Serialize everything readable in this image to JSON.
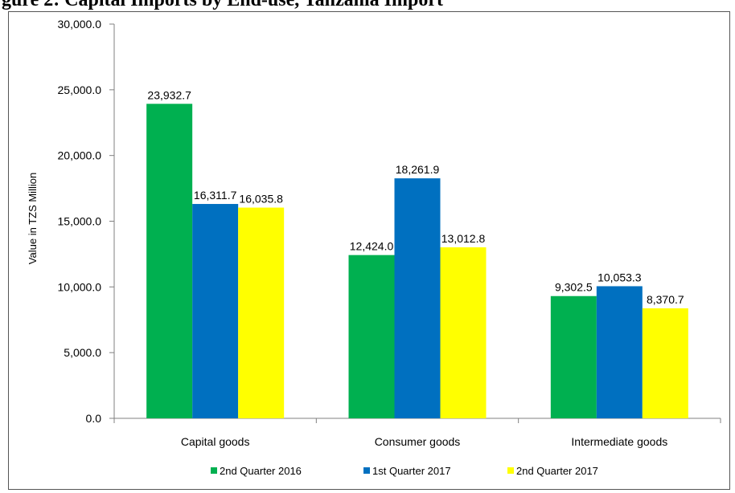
{
  "figure_title": "gure 2: Capital Imports by End-use, Tanzania Import",
  "chart_data": {
    "type": "bar",
    "categories": [
      "Capital goods",
      "Consumer  goods",
      "Intermediate goods"
    ],
    "series": [
      {
        "name": "2nd Quarter 2016",
        "color": "#00B050",
        "values": [
          23932.7,
          12424.0,
          9302.5
        ],
        "labels": [
          "23,932.7",
          "12,424.0",
          "9,302.5"
        ]
      },
      {
        "name": "1st Quarter 2017",
        "color": "#0070C0",
        "values": [
          16311.7,
          18261.9,
          10053.3
        ],
        "labels": [
          "16,311.7",
          "18,261.9",
          "10,053.3"
        ]
      },
      {
        "name": "2nd Quarter 2017",
        "color": "#FFFF00",
        "values": [
          16035.8,
          13012.8,
          8370.7
        ],
        "labels": [
          "16,035.8",
          "13,012.8",
          "8,370.7"
        ]
      }
    ],
    "ylabel": "Value in TZS Million",
    "xlabel": "",
    "ylim": [
      0,
      30000
    ],
    "yticks": [
      0,
      5000,
      10000,
      15000,
      20000,
      25000,
      30000
    ],
    "ytick_labels": [
      "0.0",
      "5,000.0",
      "10,000.0",
      "15,000.0",
      "20,000.0",
      "25,000.0",
      "30,000.0"
    ],
    "grid": false,
    "legend_position": "bottom"
  }
}
